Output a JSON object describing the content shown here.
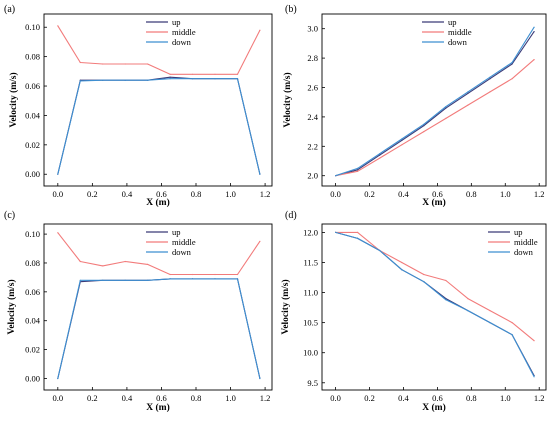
{
  "colors": {
    "up": "#3a3a78",
    "middle": "#f27b7b",
    "down": "#3d8fd1",
    "axis": "#000000"
  },
  "chart_data": [
    {
      "panel": "(a)",
      "type": "line",
      "xlabel": "X (m)",
      "ylabel": "Velocity (m/s)",
      "xlim": [
        -0.08,
        1.24
      ],
      "ylim": [
        -0.008,
        0.109
      ],
      "xticks": [
        "0.0",
        "0.2",
        "0.4",
        "0.6",
        "0.8",
        "1.0",
        "1.2"
      ],
      "yticks": [
        "0.00",
        "0.02",
        "0.04",
        "0.06",
        "0.08",
        "0.10"
      ],
      "legend_position": "top-center",
      "series": [
        {
          "name": "up",
          "color": "#3a3a78",
          "x": [
            0,
            0.13,
            0.26,
            0.39,
            0.52,
            0.65,
            0.78,
            0.91,
            1.04,
            1.17
          ],
          "y": [
            0.0,
            0.064,
            0.064,
            0.064,
            0.064,
            0.066,
            0.065,
            0.065,
            0.065,
            0.0
          ]
        },
        {
          "name": "middle",
          "color": "#f27b7b",
          "x": [
            0,
            0.13,
            0.26,
            0.39,
            0.52,
            0.65,
            0.78,
            0.91,
            1.04,
            1.17
          ],
          "y": [
            0.101,
            0.076,
            0.075,
            0.075,
            0.075,
            0.068,
            0.068,
            0.068,
            0.068,
            0.098
          ]
        },
        {
          "name": "down",
          "color": "#3d8fd1",
          "x": [
            0,
            0.13,
            0.26,
            0.39,
            0.52,
            0.65,
            0.78,
            0.91,
            1.04,
            1.17
          ],
          "y": [
            0.0,
            0.0635,
            0.064,
            0.064,
            0.064,
            0.065,
            0.065,
            0.065,
            0.065,
            0.0
          ]
        }
      ]
    },
    {
      "panel": "(b)",
      "type": "line",
      "xlabel": "X (m)",
      "ylabel": "Velocity (m/s)",
      "xlim": [
        -0.08,
        1.24
      ],
      "ylim": [
        1.93,
        3.1
      ],
      "xticks": [
        "0.0",
        "0.2",
        "0.4",
        "0.6",
        "0.8",
        "1.0",
        "1.2"
      ],
      "yticks": [
        "2.0",
        "2.2",
        "2.4",
        "2.6",
        "2.8",
        "3.0"
      ],
      "legend_position": "top-center",
      "series": [
        {
          "name": "up",
          "color": "#3a3a78",
          "x": [
            0,
            0.13,
            0.26,
            0.39,
            0.52,
            0.65,
            0.78,
            0.91,
            1.04,
            1.17
          ],
          "y": [
            2.0,
            2.04,
            2.14,
            2.24,
            2.34,
            2.46,
            2.56,
            2.66,
            2.76,
            2.98
          ]
        },
        {
          "name": "middle",
          "color": "#f27b7b",
          "x": [
            0,
            0.13,
            0.26,
            0.39,
            0.52,
            0.65,
            0.78,
            0.91,
            1.04,
            1.17
          ],
          "y": [
            2.0,
            2.03,
            2.12,
            2.21,
            2.3,
            2.39,
            2.48,
            2.57,
            2.66,
            2.79
          ]
        },
        {
          "name": "down",
          "color": "#3d8fd1",
          "x": [
            0,
            0.13,
            0.26,
            0.39,
            0.52,
            0.65,
            0.78,
            0.91,
            1.04,
            1.17
          ],
          "y": [
            2.0,
            2.05,
            2.15,
            2.25,
            2.35,
            2.47,
            2.57,
            2.67,
            2.77,
            3.01
          ]
        }
      ]
    },
    {
      "panel": "(c)",
      "type": "line",
      "xlabel": "X (m)",
      "ylabel": "Velocity (m/s)",
      "xlim": [
        -0.08,
        1.24
      ],
      "ylim": [
        -0.008,
        0.107
      ],
      "xticks": [
        "0.0",
        "0.2",
        "0.4",
        "0.6",
        "0.8",
        "1.0",
        "1.2"
      ],
      "yticks": [
        "0.00",
        "0.02",
        "0.04",
        "0.06",
        "0.08",
        "0.10"
      ],
      "legend_position": "top-center",
      "series": [
        {
          "name": "up",
          "color": "#3a3a78",
          "x": [
            0,
            0.13,
            0.26,
            0.39,
            0.52,
            0.65,
            0.78,
            0.91,
            1.04,
            1.17
          ],
          "y": [
            0.0,
            0.067,
            0.068,
            0.068,
            0.068,
            0.069,
            0.069,
            0.069,
            0.069,
            0.0
          ]
        },
        {
          "name": "middle",
          "color": "#f27b7b",
          "x": [
            0,
            0.13,
            0.26,
            0.39,
            0.52,
            0.65,
            0.78,
            0.91,
            1.04,
            1.17
          ],
          "y": [
            0.101,
            0.081,
            0.078,
            0.081,
            0.079,
            0.072,
            0.072,
            0.072,
            0.072,
            0.095
          ]
        },
        {
          "name": "down",
          "color": "#3d8fd1",
          "x": [
            0,
            0.13,
            0.26,
            0.39,
            0.52,
            0.65,
            0.78,
            0.91,
            1.04,
            1.17
          ],
          "y": [
            0.0,
            0.068,
            0.068,
            0.068,
            0.068,
            0.069,
            0.069,
            0.069,
            0.069,
            0.0
          ]
        }
      ]
    },
    {
      "panel": "(d)",
      "type": "line",
      "xlabel": "X (m)",
      "ylabel": "Velocity (m/s)",
      "xlim": [
        -0.08,
        1.24
      ],
      "ylim": [
        9.38,
        12.14
      ],
      "xticks": [
        "0.0",
        "0.2",
        "0.4",
        "0.6",
        "0.8",
        "1.0",
        "1.2"
      ],
      "yticks": [
        "9.5",
        "10.0",
        "10.5",
        "11.0",
        "11.5",
        "12.0"
      ],
      "legend_position": "top-right",
      "series": [
        {
          "name": "up",
          "color": "#3a3a78",
          "x": [
            0,
            0.13,
            0.26,
            0.39,
            0.52,
            0.65,
            0.78,
            0.91,
            1.04,
            1.17
          ],
          "y": [
            12.0,
            11.9,
            11.7,
            11.38,
            11.18,
            10.9,
            10.7,
            10.5,
            10.3,
            9.62
          ]
        },
        {
          "name": "middle",
          "color": "#f27b7b",
          "x": [
            0,
            0.13,
            0.26,
            0.39,
            0.52,
            0.65,
            0.78,
            0.91,
            1.04,
            1.17
          ],
          "y": [
            12.0,
            12.0,
            11.7,
            11.5,
            11.3,
            11.2,
            10.9,
            10.7,
            10.5,
            10.2
          ]
        },
        {
          "name": "down",
          "color": "#3d8fd1",
          "x": [
            0,
            0.13,
            0.26,
            0.39,
            0.52,
            0.65,
            0.78,
            0.91,
            1.04,
            1.17
          ],
          "y": [
            12.0,
            11.9,
            11.7,
            11.38,
            11.18,
            10.88,
            10.7,
            10.5,
            10.3,
            9.6
          ]
        }
      ]
    }
  ]
}
